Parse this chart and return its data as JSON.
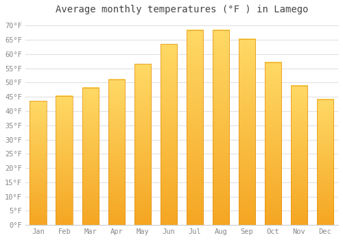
{
  "title": "Average monthly temperatures (°F ) in Lamego",
  "months": [
    "Jan",
    "Feb",
    "Mar",
    "Apr",
    "May",
    "Jun",
    "Jul",
    "Aug",
    "Sep",
    "Oct",
    "Nov",
    "Dec"
  ],
  "values": [
    43.5,
    45.3,
    48.2,
    51.1,
    56.5,
    63.5,
    68.5,
    68.5,
    65.3,
    57.2,
    49.0,
    44.2
  ],
  "bar_color_bottom": "#F5A623",
  "bar_color_top": "#FFD966",
  "background_color": "#ffffff",
  "grid_color": "#e0e0e0",
  "yticks": [
    0,
    5,
    10,
    15,
    20,
    25,
    30,
    35,
    40,
    45,
    50,
    55,
    60,
    65,
    70
  ],
  "ylim": [
    0,
    72
  ],
  "title_fontsize": 10,
  "tick_fontsize": 7.5
}
